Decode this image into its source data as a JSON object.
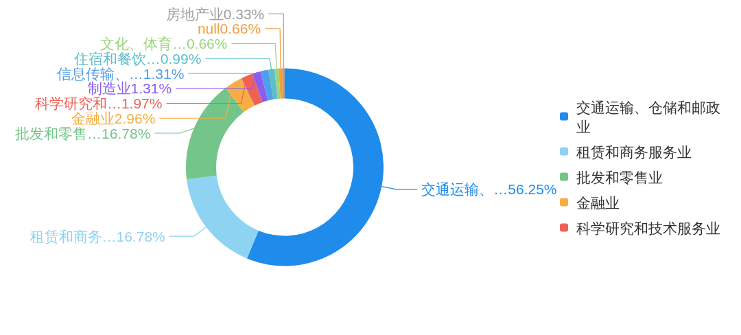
{
  "chart_data": {
    "type": "donut",
    "categories": [
      "交通运输、仓储和邮政业",
      "租赁和商务服务业",
      "批发和零售业",
      "金融业",
      "科学研究和技术服务业",
      null,
      null,
      null,
      null,
      null,
      null
    ],
    "values": [
      56.25,
      16.78,
      16.78,
      2.96,
      1.97,
      1.31,
      1.31,
      0.99,
      0.66,
      0.66,
      0.33
    ],
    "colors": [
      "#1f8ceb",
      "#8ed3f2",
      "#74c58a",
      "#f6ad45",
      "#ef6156",
      "#8b5cf0",
      "#4f9fea",
      "#5bbfc9",
      "#9fd47e",
      "#f0a040",
      "#a0a0a0"
    ],
    "value_labels": [
      "交通运输、…56.25%",
      "租赁和商务…16.78%",
      "批发和零售…16.78%",
      "金融业2.96%",
      "科学研究和…1.97%",
      "制造业1.31%",
      "信息传输、…1.31%",
      "住宿和餐饮…0.99%",
      "文化、体育…0.66%",
      "null0.66%",
      "房地产业0.33%"
    ],
    "legend": "right"
  }
}
